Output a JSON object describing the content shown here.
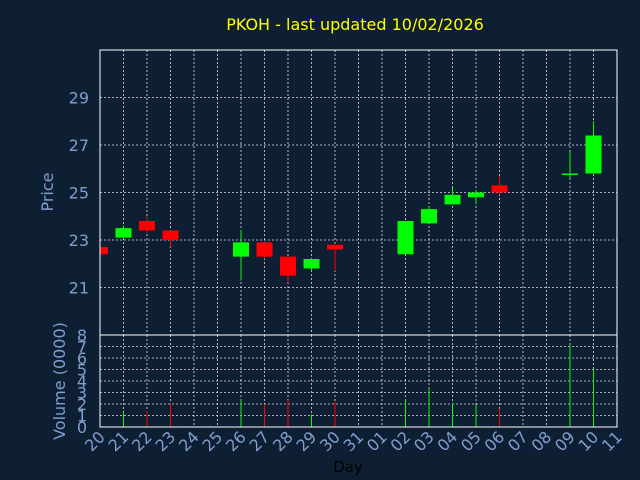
{
  "colors": {
    "background": "#0f1f33",
    "up": "#00ff00",
    "down": "#ff0000",
    "title": "#ffff00",
    "axis": "#7f9fcf"
  },
  "chart_data": {
    "type": "candlestick",
    "title": "PKOH - last updated 10/02/2026",
    "xlabel": "Day",
    "price_ylabel": "Price",
    "volume_ylabel": "Volume (0000)",
    "x_ticks": [
      "20",
      "21",
      "22",
      "23",
      "24",
      "25",
      "26",
      "27",
      "28",
      "29",
      "30",
      "31",
      "01",
      "02",
      "03",
      "04",
      "05",
      "06",
      "07",
      "08",
      "09",
      "10",
      "11"
    ],
    "price_yticks": [
      21,
      23,
      25,
      27,
      29
    ],
    "price_ylim": [
      19.0,
      31.0
    ],
    "volume_yticks": [
      0,
      1,
      2,
      3,
      4,
      5,
      6,
      7,
      8
    ],
    "volume_ylim": [
      0,
      8
    ],
    "candles": [
      {
        "day": "20",
        "open": 22.7,
        "close": 22.4,
        "high": 22.7,
        "low": 22.4,
        "volume": 0.0
      },
      {
        "day": "21",
        "open": 23.1,
        "close": 23.5,
        "high": 23.6,
        "low": 23.1,
        "volume": 1.3
      },
      {
        "day": "22",
        "open": 23.8,
        "close": 23.4,
        "high": 24.0,
        "low": 23.3,
        "volume": 1.4
      },
      {
        "day": "23",
        "open": 23.4,
        "close": 23.0,
        "high": 23.4,
        "low": 22.7,
        "volume": 2.1
      },
      {
        "day": "26",
        "open": 22.3,
        "close": 22.9,
        "high": 23.4,
        "low": 21.3,
        "volume": 2.4
      },
      {
        "day": "27",
        "open": 22.9,
        "close": 22.3,
        "high": 22.9,
        "low": 22.2,
        "volume": 2.0
      },
      {
        "day": "28",
        "open": 22.3,
        "close": 21.5,
        "high": 22.3,
        "low": 21.2,
        "volume": 2.3
      },
      {
        "day": "29",
        "open": 21.8,
        "close": 22.2,
        "high": 22.2,
        "low": 21.7,
        "volume": 1.1
      },
      {
        "day": "30",
        "open": 22.8,
        "close": 22.6,
        "high": 22.8,
        "low": 21.7,
        "volume": 2.2
      },
      {
        "day": "02",
        "open": 22.4,
        "close": 23.8,
        "high": 23.8,
        "low": 22.4,
        "volume": 2.4
      },
      {
        "day": "03",
        "open": 23.7,
        "close": 24.3,
        "high": 24.4,
        "low": 23.7,
        "volume": 3.4
      },
      {
        "day": "04",
        "open": 24.5,
        "close": 24.9,
        "high": 25.2,
        "low": 24.5,
        "volume": 2.1
      },
      {
        "day": "05",
        "open": 24.8,
        "close": 25.0,
        "high": 25.1,
        "low": 24.5,
        "volume": 1.9
      },
      {
        "day": "06",
        "open": 25.3,
        "close": 25.0,
        "high": 25.7,
        "low": 24.9,
        "volume": 1.6
      },
      {
        "day": "09",
        "open": 25.8,
        "close": 25.8,
        "high": 26.7,
        "low": 25.6,
        "volume": 7.1
      },
      {
        "day": "10",
        "open": 25.8,
        "close": 27.4,
        "high": 28.0,
        "low": 25.8,
        "volume": 5.0
      }
    ]
  }
}
